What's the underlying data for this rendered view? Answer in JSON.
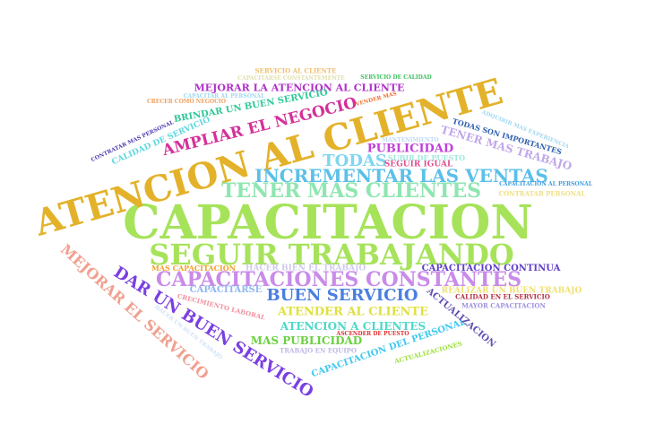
{
  "words": [
    {
      "text": "CAPACITACION",
      "color": "#a6e35a"
    },
    {
      "text": "ATENCION AL CLIENTE",
      "color": "#e3b22a"
    },
    {
      "text": "SEGUIR TRABAJANDO",
      "color": "#a6e35a"
    },
    {
      "text": "CAPACITACIONES CONSTANTES",
      "color": "#c98be8"
    },
    {
      "text": "INCREMENTAR LAS VENTAS",
      "color": "#5bc0e8"
    },
    {
      "text": "TENER MAS CLIENTES",
      "color": "#8fe6b0"
    },
    {
      "text": "AMPLIAR EL NEGOCIO",
      "color": "#d4309a"
    },
    {
      "text": "DAR UN BUEN SERVICIO",
      "color": "#7a3fe0"
    },
    {
      "text": "MEJORAR EL SERVICIO",
      "color": "#f0a090"
    },
    {
      "text": "BUEN SERVICIO",
      "color": "#4a7fe0"
    },
    {
      "text": "TODAS",
      "color": "#7fd6f0"
    },
    {
      "text": "PUBLICIDAD",
      "color": "#c040d8"
    },
    {
      "text": "TENER MAS TRABAJO",
      "color": "#c0a8e8"
    },
    {
      "text": "MEJORAR LA ATENCION AL CLIENTE",
      "color": "#b030c8"
    },
    {
      "text": "BRINDAR UN BUEN SERVICIO",
      "color": "#2ec898"
    },
    {
      "text": "CALIDAD DE SERVICIO",
      "color": "#60d8e0"
    },
    {
      "text": "ATENDER AL CLIENTE",
      "color": "#e0e040"
    },
    {
      "text": "ATENCION A CLIENTES",
      "color": "#50d8c8"
    },
    {
      "text": "MAS PUBLICIDAD",
      "color": "#6ad040"
    },
    {
      "text": "CAPACITACION DEL PERSONAL",
      "color": "#40c8f0"
    },
    {
      "text": "ACTUALIZACION",
      "color": "#6050b0"
    },
    {
      "text": "TODAS SON IMPORTANTES",
      "color": "#3060b0"
    },
    {
      "text": "CAPACITACION CONTINUA",
      "color": "#6040c8"
    },
    {
      "text": "REALIZAR UN BUEN TRABAJO",
      "color": "#f0e070"
    },
    {
      "text": "CAPACITARSE",
      "color": "#90b8f0"
    },
    {
      "text": "HACER BIEN EL TRABAJO",
      "color": "#d0c8f0"
    },
    {
      "text": "MAS CAPACITACION",
      "color": "#f0a030"
    },
    {
      "text": "SEGUIR IGUAL",
      "color": "#e05090"
    },
    {
      "text": "SUBIR DE PUESTO",
      "color": "#a0e8e0"
    },
    {
      "text": "CRECIMIENTO LABORAL",
      "color": "#f090a0"
    },
    {
      "text": "HACER UN BUEN TRABAJO",
      "color": "#d0e0f8"
    },
    {
      "text": "TRABAJO EN EQUIPO",
      "color": "#c0b8e8"
    },
    {
      "text": "ACTUALIZACIONES",
      "color": "#a0e040"
    },
    {
      "text": "ASCENDER DE PUESTO",
      "color": "#e03030"
    },
    {
      "text": "MAYOR CAPACITACION",
      "color": "#a090e0"
    },
    {
      "text": "CALIDAD EN EL SERVICIO",
      "color": "#b03040"
    },
    {
      "text": "CAPACITACION AL PERSONAL",
      "color": "#40a0e0"
    },
    {
      "text": "CONTRATAR PERSONAL",
      "color": "#f0e080"
    },
    {
      "text": "ADQUIRIR MAS EXPERIENCIA",
      "color": "#a0d8f0"
    },
    {
      "text": "MANTENIMIENTO",
      "color": "#c0d8f0"
    },
    {
      "text": "SERVICIO AL CLIENTE",
      "color": "#f0c070"
    },
    {
      "text": "CAPACITARSE CONSTANTEMENTE",
      "color": "#e0e0b0"
    },
    {
      "text": "SERVICIO DE CALIDAD",
      "color": "#40c060"
    },
    {
      "text": "CAPACITAR AL PERSONAL",
      "color": "#a0d8f0"
    },
    {
      "text": "CRECER COMO NEGOCIO",
      "color": "#f0a060"
    },
    {
      "text": "VENDER MAS",
      "color": "#f07030"
    },
    {
      "text": "CONTRATAR MAS PERSONAL",
      "color": "#5040b0"
    }
  ]
}
